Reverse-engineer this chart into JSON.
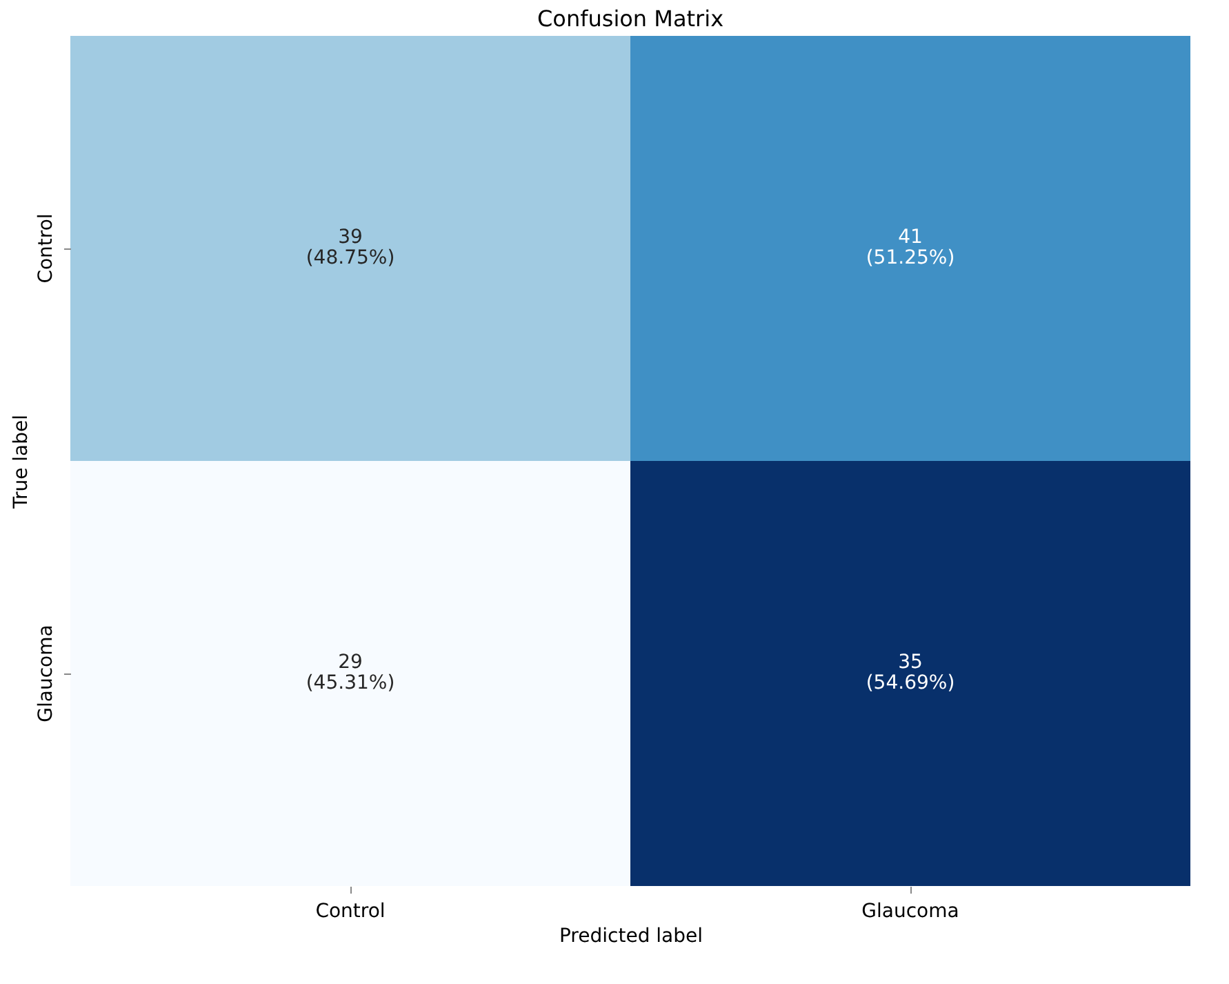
{
  "chart_data": {
    "type": "heatmap",
    "title": "Confusion Matrix",
    "xlabel": "Predicted label",
    "ylabel": "True label",
    "categories": [
      "Control",
      "Glaucoma"
    ],
    "y_categories": [
      "Control",
      "Glaucoma"
    ],
    "cells": [
      [
        39,
        41
      ],
      [
        29,
        35
      ]
    ],
    "data_labels": true,
    "annotations": [
      "(48.75%)",
      "(51.25%)",
      "(45.31%)",
      "(54.69%)"
    ],
    "grid": false,
    "legend": false
  }
}
